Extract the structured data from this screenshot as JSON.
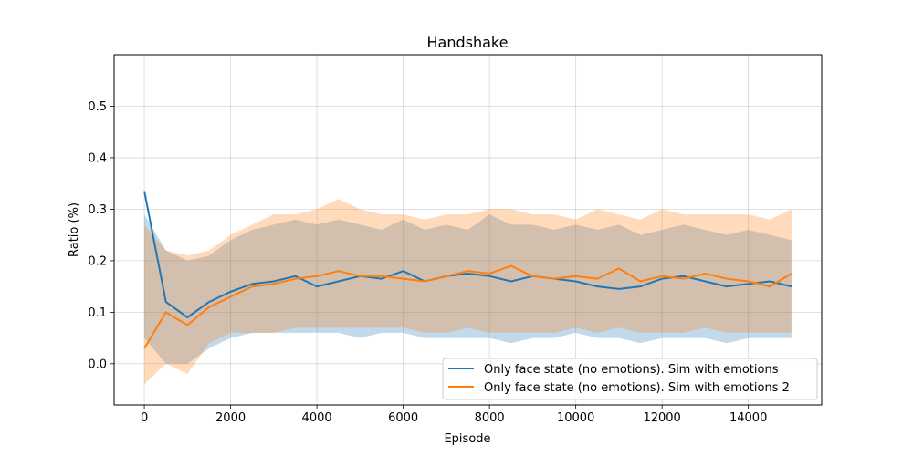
{
  "chart_data": {
    "type": "line",
    "title": "Handshake",
    "xlabel": "Episode",
    "ylabel": "Ratio (%)",
    "xlim": [
      -700,
      15700
    ],
    "ylim": [
      -0.08,
      0.6
    ],
    "x_ticks": [
      0,
      2000,
      4000,
      6000,
      8000,
      10000,
      12000,
      14000
    ],
    "x_tick_labels": [
      "0",
      "2000",
      "4000",
      "6000",
      "8000",
      "10000",
      "12000",
      "14000"
    ],
    "y_ticks": [
      0.0,
      0.1,
      0.2,
      0.3,
      0.4,
      0.5
    ],
    "y_tick_labels": [
      "0.0",
      "0.1",
      "0.2",
      "0.3",
      "0.4",
      "0.5"
    ],
    "grid": true,
    "legend_position": "lower-right",
    "x": [
      0,
      500,
      1000,
      1500,
      2000,
      2500,
      3000,
      3500,
      4000,
      4500,
      5000,
      5500,
      6000,
      6500,
      7000,
      7500,
      8000,
      8500,
      9000,
      9500,
      10000,
      10500,
      11000,
      11500,
      12000,
      12500,
      13000,
      13500,
      14000,
      14500,
      15000
    ],
    "series": [
      {
        "name": "Only face state (no emotions). Sim with emotions",
        "color": "#1f77b4",
        "values": [
          0.335,
          0.12,
          0.09,
          0.12,
          0.14,
          0.155,
          0.16,
          0.17,
          0.15,
          0.16,
          0.17,
          0.165,
          0.18,
          0.16,
          0.17,
          0.175,
          0.17,
          0.16,
          0.17,
          0.165,
          0.16,
          0.15,
          0.145,
          0.15,
          0.165,
          0.17,
          0.16,
          0.15,
          0.155,
          0.16,
          0.15
        ],
        "lower": [
          0.05,
          0.0,
          0.0,
          0.03,
          0.05,
          0.06,
          0.06,
          0.06,
          0.06,
          0.06,
          0.05,
          0.06,
          0.06,
          0.05,
          0.05,
          0.05,
          0.05,
          0.04,
          0.05,
          0.05,
          0.06,
          0.05,
          0.05,
          0.04,
          0.05,
          0.05,
          0.05,
          0.04,
          0.05,
          0.05,
          0.05
        ],
        "upper": [
          0.29,
          0.22,
          0.2,
          0.21,
          0.24,
          0.26,
          0.27,
          0.28,
          0.27,
          0.28,
          0.27,
          0.26,
          0.28,
          0.26,
          0.27,
          0.26,
          0.29,
          0.27,
          0.27,
          0.26,
          0.27,
          0.26,
          0.27,
          0.25,
          0.26,
          0.27,
          0.26,
          0.25,
          0.26,
          0.25,
          0.24
        ]
      },
      {
        "name": "Only face state (no emotions). Sim with emotions 2",
        "color": "#ff7f0e",
        "values": [
          0.03,
          0.1,
          0.075,
          0.11,
          0.13,
          0.15,
          0.155,
          0.165,
          0.17,
          0.18,
          0.17,
          0.17,
          0.165,
          0.16,
          0.17,
          0.18,
          0.175,
          0.19,
          0.17,
          0.165,
          0.17,
          0.165,
          0.185,
          0.16,
          0.17,
          0.165,
          0.175,
          0.165,
          0.16,
          0.15,
          0.175
        ],
        "lower": [
          -0.04,
          0.0,
          -0.02,
          0.04,
          0.06,
          0.06,
          0.06,
          0.07,
          0.07,
          0.07,
          0.07,
          0.07,
          0.07,
          0.06,
          0.06,
          0.07,
          0.06,
          0.06,
          0.06,
          0.06,
          0.07,
          0.06,
          0.07,
          0.06,
          0.06,
          0.06,
          0.07,
          0.06,
          0.06,
          0.06,
          0.06
        ],
        "upper": [
          0.27,
          0.22,
          0.21,
          0.22,
          0.25,
          0.27,
          0.29,
          0.29,
          0.3,
          0.32,
          0.3,
          0.29,
          0.29,
          0.28,
          0.29,
          0.29,
          0.3,
          0.3,
          0.29,
          0.29,
          0.28,
          0.3,
          0.29,
          0.28,
          0.3,
          0.29,
          0.29,
          0.29,
          0.29,
          0.28,
          0.3
        ]
      }
    ]
  }
}
